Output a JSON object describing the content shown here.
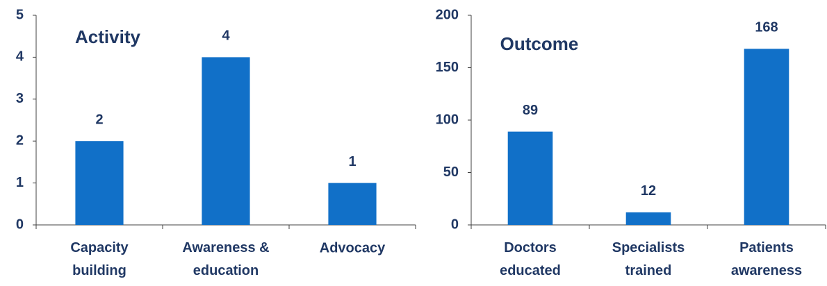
{
  "chart_data": [
    {
      "type": "bar",
      "title": "Activity",
      "categories": [
        "Capacity building",
        "Awareness & education",
        "Advocacy"
      ],
      "values": [
        2,
        4,
        1
      ],
      "color": "#1170c8",
      "ylim": [
        0,
        5
      ],
      "yticks": [
        0,
        1,
        2,
        3,
        4,
        5
      ],
      "grid": false
    },
    {
      "type": "bar",
      "title": "Outcome",
      "categories": [
        "Doctors educated",
        "Specialists trained",
        "Patients awareness"
      ],
      "values": [
        89,
        12,
        168
      ],
      "color": "#1170c8",
      "ylim": [
        0,
        200
      ],
      "yticks": [
        0,
        50,
        100,
        150,
        200
      ],
      "grid": false
    }
  ]
}
